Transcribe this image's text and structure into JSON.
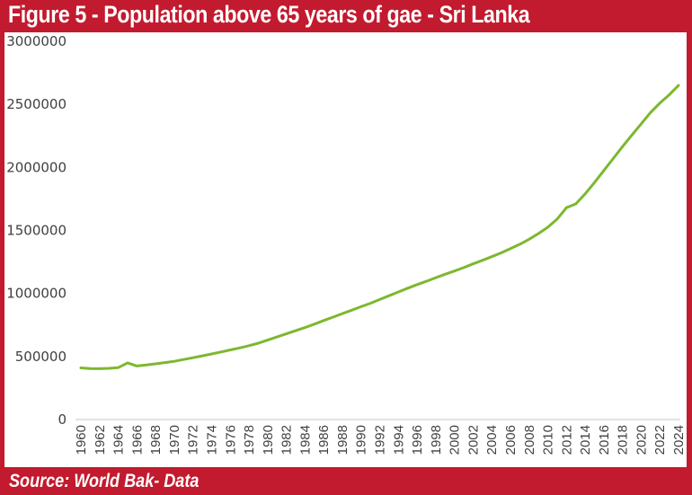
{
  "header": {
    "title": "Figure 5 - Population above 65 years of gae - Sri Lanka"
  },
  "footer": {
    "source": "Source: World Bak- Data"
  },
  "colors": {
    "frame": "#c21a2e",
    "line": "#7cb82f",
    "axis": "#d9d9d9",
    "text": "#404040"
  },
  "chart_data": {
    "type": "line",
    "title": "Figure 5 - Population above 65 years of gae - Sri Lanka",
    "xlabel": "",
    "ylabel": "",
    "ylim": [
      0,
      3000000
    ],
    "xlim": [
      1960,
      2024
    ],
    "grid": false,
    "legend": "none",
    "y_ticks": [
      "0",
      "500000",
      "1000000",
      "1500000",
      "2000000",
      "2500000",
      "3000000"
    ],
    "x_ticks": [
      "1960",
      "1962",
      "1964",
      "1966",
      "1968",
      "1970",
      "1972",
      "1974",
      "1976",
      "1978",
      "1980",
      "1982",
      "1984",
      "1986",
      "1988",
      "1990",
      "1992",
      "1994",
      "1996",
      "1998",
      "2000",
      "2002",
      "2004",
      "2006",
      "2008",
      "2010",
      "2012",
      "2014",
      "2016",
      "2018",
      "2020",
      "2022",
      "2024"
    ],
    "series": [
      {
        "name": "Population above 65",
        "x": [
          1960,
          1961,
          1962,
          1963,
          1964,
          1965,
          1966,
          1967,
          1968,
          1969,
          1970,
          1971,
          1972,
          1973,
          1974,
          1975,
          1976,
          1977,
          1978,
          1979,
          1980,
          1981,
          1982,
          1983,
          1984,
          1985,
          1986,
          1987,
          1988,
          1989,
          1990,
          1991,
          1992,
          1993,
          1994,
          1995,
          1996,
          1997,
          1998,
          1999,
          2000,
          2001,
          2002,
          2003,
          2004,
          2005,
          2006,
          2007,
          2008,
          2009,
          2010,
          2011,
          2012,
          2013,
          2014,
          2015,
          2016,
          2017,
          2018,
          2019,
          2020,
          2021,
          2022,
          2023,
          2024
        ],
        "values": [
          410000,
          405000,
          403000,
          406000,
          412000,
          450000,
          425000,
          433000,
          442000,
          452000,
          462000,
          476000,
          490000,
          505000,
          520000,
          536000,
          552000,
          568000,
          586000,
          606000,
          630000,
          655000,
          680000,
          705000,
          730000,
          757000,
          785000,
          812000,
          840000,
          867000,
          895000,
          922000,
          952000,
          982000,
          1012000,
          1042000,
          1070000,
          1097000,
          1125000,
          1152000,
          1178000,
          1205000,
          1235000,
          1263000,
          1292000,
          1322000,
          1355000,
          1390000,
          1430000,
          1475000,
          1525000,
          1590000,
          1680000,
          1710000,
          1790000,
          1880000,
          1975000,
          2070000,
          2165000,
          2255000,
          2345000,
          2435000,
          2510000,
          2575000,
          2650000
        ]
      }
    ]
  }
}
